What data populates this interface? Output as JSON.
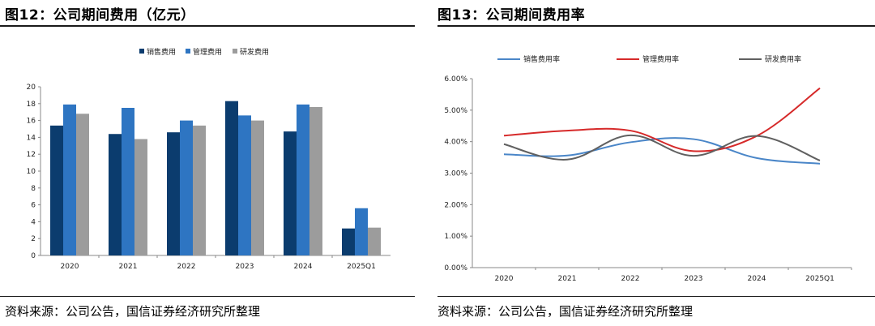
{
  "figures": [
    {
      "title": "图12：公司期间费用（亿元）",
      "source": "资料来源：公司公告，国信证券经济研究所整理"
    },
    {
      "title": "图13：公司期间费用率",
      "source": "资料来源：公司公告，国信证券经济研究所整理"
    }
  ],
  "chart_data": [
    {
      "type": "bar",
      "title": "公司期间费用（亿元）",
      "categories": [
        "2020",
        "2021",
        "2022",
        "2023",
        "2024",
        "2025Q1"
      ],
      "series": [
        {
          "name": "销售费用",
          "color": "#0b3c6e",
          "values": [
            15.4,
            14.4,
            14.6,
            18.3,
            14.7,
            3.2
          ]
        },
        {
          "name": "管理费用",
          "color": "#2e75c2",
          "values": [
            17.9,
            17.5,
            16.0,
            16.6,
            17.9,
            5.6
          ]
        },
        {
          "name": "研发费用",
          "color": "#9c9c9c",
          "values": [
            16.8,
            13.8,
            15.4,
            16.0,
            17.6,
            3.3
          ]
        }
      ],
      "yticks": [
        "0",
        "2",
        "4",
        "6",
        "8",
        "10",
        "12",
        "14",
        "16",
        "18",
        "20"
      ],
      "ylim": [
        0,
        20
      ],
      "legend": "top"
    },
    {
      "type": "line",
      "title": "公司期间费用率",
      "categories": [
        "2020",
        "2021",
        "2022",
        "2023",
        "2024",
        "2025Q1"
      ],
      "series": [
        {
          "name": "销售费用率",
          "color": "#4a86c8",
          "values": [
            3.6,
            3.56,
            3.98,
            4.08,
            3.48,
            3.3
          ]
        },
        {
          "name": "管理费用率",
          "color": "#d62a2a",
          "values": [
            4.19,
            4.35,
            4.35,
            3.7,
            4.18,
            5.7
          ]
        },
        {
          "name": "研发费用率",
          "color": "#606060",
          "values": [
            3.92,
            3.43,
            4.2,
            3.55,
            4.18,
            3.4
          ]
        }
      ],
      "yticks": [
        "0.00%",
        "1.00%",
        "2.00%",
        "3.00%",
        "4.00%",
        "5.00%",
        "6.00%"
      ],
      "ylim": [
        0,
        6
      ],
      "legend": "top"
    }
  ]
}
